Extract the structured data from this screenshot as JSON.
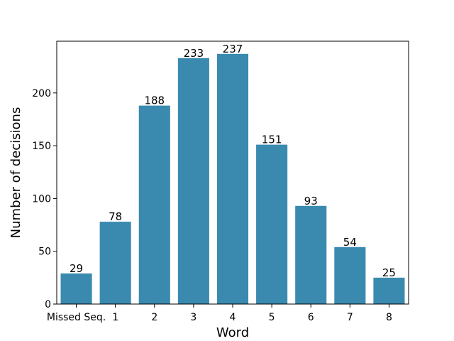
{
  "chart_data": {
    "type": "bar",
    "categories": [
      "Missed Seq.",
      "1",
      "2",
      "3",
      "4",
      "5",
      "6",
      "7",
      "8"
    ],
    "values": [
      29,
      78,
      188,
      233,
      237,
      151,
      93,
      54,
      25
    ],
    "title": "",
    "xlabel": "Word",
    "ylabel": "Number of decisions",
    "ylim": [
      0,
      249
    ],
    "yticks": [
      0,
      50,
      100,
      150,
      200
    ],
    "grid": false,
    "legend": "none",
    "bar_color": "#3a8ab0",
    "data_labels": [
      "29",
      "78",
      "188",
      "233",
      "237",
      "151",
      "93",
      "54",
      "25"
    ]
  }
}
